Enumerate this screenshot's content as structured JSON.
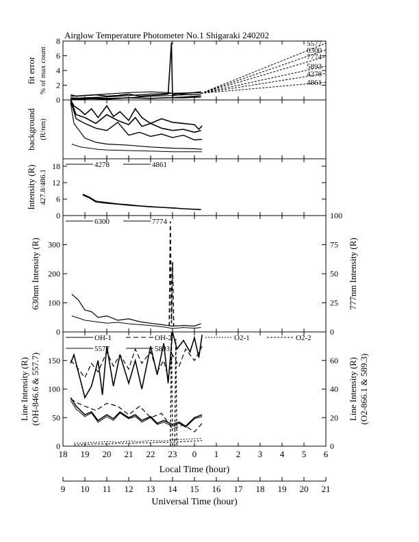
{
  "title": "Airglow Temperature Photometer No.1  Shigaraki  240202",
  "chart_data": [
    {
      "id": "fit-error",
      "type": "line",
      "ylabel_lines": [
        "fit error",
        "% of max count"
      ],
      "ylim": [
        0,
        8
      ],
      "yticks": [
        "0",
        "2",
        "4",
        "6",
        "8"
      ],
      "right_labels": [
        "5577",
        "6300",
        "7774",
        "5893",
        "4278",
        "4861"
      ],
      "series": [
        {
          "name": "5577",
          "width": 1.6,
          "x": [
            18.35,
            18.6,
            19.0,
            19.5,
            20.0,
            20.5,
            21.0,
            21.5,
            22.0,
            22.5,
            22.8,
            22.95,
            23.0,
            23.05,
            23.2,
            23.6,
            24.0,
            24.3
          ],
          "y": [
            0.7,
            0.5,
            0.6,
            0.7,
            0.5,
            0.6,
            0.8,
            0.5,
            0.6,
            0.7,
            0.8,
            7.8,
            0.4,
            0.7,
            0.8,
            0.9,
            1.0,
            1.1
          ]
        },
        {
          "name": "6300",
          "width": 1.2,
          "x": [
            18.35,
            19.0,
            19.5,
            20.0,
            21.0,
            22.0,
            22.8,
            23.5,
            24.0,
            24.3
          ],
          "y": [
            0.3,
            0.2,
            0.3,
            0.2,
            0.3,
            0.2,
            0.3,
            0.4,
            0.5,
            0.6
          ]
        },
        {
          "name": "7774",
          "width": 1.2,
          "x": [
            18.35,
            19.0,
            20.0,
            21.0,
            22.0,
            22.8,
            23.2,
            23.8,
            24.3
          ],
          "y": [
            0.5,
            0.6,
            0.8,
            1.0,
            1.1,
            1.0,
            0.8,
            0.7,
            0.8
          ]
        },
        {
          "name": "5893",
          "width": 1.6,
          "x": [
            18.35,
            19.0,
            20.0,
            21.0,
            22.0,
            22.8,
            23.5,
            24.3
          ],
          "y": [
            0.1,
            0.2,
            0.1,
            0.3,
            0.2,
            0.3,
            0.3,
            0.4
          ]
        },
        {
          "name": "4278",
          "width": 1.2,
          "x": [
            18.35,
            19.0,
            20.0,
            21.0,
            22.0,
            23.0,
            24.3
          ],
          "y": [
            0.2,
            0.3,
            0.4,
            0.6,
            0.8,
            0.9,
            1.0
          ]
        },
        {
          "name": "4861",
          "width": 1.0,
          "x": [
            18.35,
            19.0,
            20.0,
            21.0,
            22.0,
            23.0,
            24.3
          ],
          "y": [
            0.0,
            0.1,
            0.2,
            0.3,
            0.5,
            0.6,
            0.8
          ]
        }
      ],
      "guide_lines": [
        {
          "name": "5577",
          "x": [
            24.3,
            30.0
          ],
          "y": [
            0.9,
            7.7
          ]
        },
        {
          "name": "6300",
          "x": [
            24.3,
            30.0
          ],
          "y": [
            0.9,
            6.8
          ]
        },
        {
          "name": "7774",
          "x": [
            24.3,
            30.0
          ],
          "y": [
            0.9,
            5.9
          ]
        },
        {
          "name": "5893",
          "x": [
            24.3,
            30.0
          ],
          "y": [
            0.9,
            4.6
          ]
        },
        {
          "name": "4278",
          "x": [
            24.3,
            30.0
          ],
          "y": [
            0.9,
            3.6
          ]
        },
        {
          "name": "4861",
          "x": [
            24.3,
            30.0
          ],
          "y": [
            0.9,
            2.4
          ]
        }
      ]
    },
    {
      "id": "background",
      "type": "line",
      "ylabel_lines": [
        "background",
        "(R/nm)"
      ],
      "ylim": [
        0,
        100
      ],
      "yticks": [],
      "series": [
        {
          "width": 1.6,
          "x": [
            18.35,
            18.5,
            18.8,
            19.0,
            19.3,
            19.6,
            20.0,
            20.3,
            20.6,
            21.0,
            21.3,
            21.6,
            22.0,
            22.5,
            23.0,
            23.5,
            24.0,
            24.2,
            24.35
          ],
          "y": [
            100,
            90,
            82,
            75,
            85,
            70,
            90,
            72,
            80,
            65,
            85,
            70,
            60,
            68,
            62,
            60,
            58,
            50,
            56
          ]
        },
        {
          "width": 1.6,
          "x": [
            18.35,
            18.6,
            19.0,
            19.5,
            20.0,
            20.5,
            21.0,
            21.3,
            21.6,
            22.0,
            22.5,
            23.0,
            23.5,
            24.0,
            24.3
          ],
          "y": [
            100,
            75,
            70,
            60,
            75,
            65,
            58,
            70,
            55,
            60,
            52,
            48,
            50,
            45,
            48
          ]
        },
        {
          "width": 1.4,
          "x": [
            18.35,
            18.6,
            19.0,
            19.5,
            20.0,
            20.5,
            21.0,
            21.5,
            22.0,
            22.5,
            23.0,
            23.5,
            24.0,
            24.35
          ],
          "y": [
            98,
            68,
            60,
            52,
            48,
            62,
            40,
            45,
            38,
            42,
            36,
            40,
            32,
            33
          ]
        },
        {
          "width": 1.2,
          "x": [
            18.35,
            18.5,
            18.8,
            19.0,
            19.5,
            20.0,
            21.0,
            22.0,
            23.0,
            24.0,
            24.35
          ],
          "y": [
            95,
            60,
            45,
            35,
            28,
            25,
            23,
            20,
            18,
            17,
            16
          ]
        },
        {
          "width": 1.0,
          "x": [
            18.4,
            18.8,
            19.2,
            19.6,
            20.0,
            21.0,
            22.0,
            23.0,
            24.0,
            24.35
          ],
          "y": [
            25,
            20,
            18,
            16,
            15,
            14,
            13,
            12,
            12,
            12
          ]
        }
      ]
    },
    {
      "id": "blue-intensity",
      "type": "line",
      "ylabel_lines": [
        "Intensity (R)",
        "427.8/486.1"
      ],
      "ylim": [
        0,
        20.7
      ],
      "yticks": [
        "0",
        "6",
        "12",
        "18"
      ],
      "legend": [
        "4278",
        "4861"
      ],
      "series": [
        {
          "name": "4278",
          "width": 1.6,
          "x": [
            18.9,
            19.2,
            19.5,
            20.0,
            20.5,
            21.0,
            21.5,
            22.0,
            22.5,
            23.0,
            23.5,
            24.0,
            24.3
          ],
          "y": [
            7.5,
            6.5,
            5.0,
            4.5,
            4.2,
            3.8,
            3.5,
            3.2,
            3.0,
            2.8,
            2.5,
            2.3,
            2.2
          ]
        },
        {
          "name": "4861",
          "width": 1.0,
          "x": [
            18.9,
            19.2,
            19.5,
            20.0,
            20.5,
            21.0,
            21.5,
            22.0,
            22.5,
            23.0,
            23.5,
            24.0,
            24.3
          ],
          "y": [
            7.8,
            6.8,
            5.3,
            4.8,
            4.3,
            4.0,
            3.6,
            3.3,
            3.0,
            2.7,
            2.5,
            2.3,
            2.2
          ]
        }
      ]
    },
    {
      "id": "red-intensity",
      "type": "line",
      "ylabel_left": "630nm Intensity (R)",
      "ylabel_right": "777nm Intensity (R)",
      "ylim": [
        0,
        400
      ],
      "yticks": [
        "0",
        "100",
        "200",
        "300"
      ],
      "ylim_right": [
        0,
        100
      ],
      "yticks_right": [
        "0",
        "25",
        "50",
        "75",
        "100"
      ],
      "legend": [
        "6300",
        "7774"
      ],
      "series": [
        {
          "name": "6300",
          "width": 1.2,
          "x": [
            18.4,
            18.7,
            19.0,
            19.3,
            19.6,
            20.0,
            20.5,
            21.0,
            21.5,
            22.0,
            22.5,
            23.0,
            23.5,
            24.0,
            24.3
          ],
          "y": [
            130,
            110,
            75,
            70,
            50,
            55,
            40,
            45,
            35,
            30,
            25,
            20,
            22,
            20,
            28
          ]
        },
        {
          "name": "7774",
          "width": 1.0,
          "x": [
            18.4,
            18.7,
            19.0,
            19.5,
            20.0,
            20.5,
            21.0,
            21.5,
            22.0,
            22.5,
            23.0,
            23.5,
            24.0,
            24.3
          ],
          "y": [
            55,
            48,
            40,
            35,
            30,
            33,
            28,
            25,
            22,
            18,
            12,
            15,
            13,
            15
          ]
        },
        {
          "name": "6300",
          "width": 1.6,
          "dash": "6,4",
          "x": [
            22.85,
            22.9,
            22.95,
            23.0,
            23.05
          ],
          "y": [
            20,
            380,
            30,
            240,
            20
          ]
        }
      ]
    },
    {
      "id": "line-intensity",
      "type": "line",
      "ylabel_left_lines": [
        "Line Intensity (R)",
        "(OH-846.6 & 557.7)"
      ],
      "ylabel_right_lines": [
        "Line Intensity (R)",
        "(O2-866.1 & 589.3)"
      ],
      "ylim": [
        0,
        200
      ],
      "yticks": [
        "0",
        "50",
        "100",
        "150"
      ],
      "ylim_right": [
        0,
        80
      ],
      "yticks_right": [
        "0",
        "20",
        "40",
        "60"
      ],
      "legend": [
        "OH-1",
        "OH-2",
        "O2-1",
        "O2-2",
        "5577",
        "5893"
      ],
      "series": [
        {
          "name": "OH-1",
          "width": 1.6,
          "x": [
            18.35,
            18.5,
            18.7,
            19.0,
            19.3,
            19.6,
            19.8,
            20.0,
            20.3,
            20.6,
            21.0,
            21.3,
            21.6,
            22.0,
            22.3,
            22.6,
            22.8,
            23.0,
            23.2,
            23.5,
            23.8,
            24.0,
            24.2,
            24.35
          ],
          "y": [
            145,
            160,
            130,
            85,
            105,
            150,
            90,
            175,
            105,
            160,
            110,
            150,
            100,
            175,
            125,
            180,
            110,
            200,
            170,
            185,
            165,
            190,
            155,
            195
          ]
        },
        {
          "name": "OH-2",
          "width": 1.2,
          "dash": "7,4",
          "x": [
            18.35,
            18.6,
            19.0,
            19.3,
            19.6,
            20.0,
            20.3,
            20.6,
            21.0,
            21.3,
            21.6,
            22.0,
            22.3,
            22.6,
            22.8,
            23.0,
            23.3,
            23.6,
            24.0,
            24.35
          ],
          "y": [
            150,
            140,
            120,
            145,
            130,
            165,
            140,
            160,
            135,
            170,
            145,
            165,
            130,
            150,
            120,
            160,
            140,
            170,
            150,
            175
          ]
        },
        {
          "name": "5577",
          "width": 1.6,
          "x": [
            18.35,
            18.6,
            19.0,
            19.3,
            19.6,
            20.0,
            20.3,
            20.6,
            21.0,
            21.3,
            21.6,
            22.0,
            22.3,
            22.6,
            23.0,
            23.3,
            23.6,
            24.0,
            24.35
          ],
          "y": [
            85,
            70,
            55,
            60,
            45,
            55,
            48,
            60,
            50,
            55,
            45,
            52,
            40,
            45,
            38,
            42,
            35,
            50,
            55
          ]
        },
        {
          "name": "5893",
          "width": 1.0,
          "x": [
            18.35,
            18.6,
            19.0,
            19.3,
            19.6,
            20.0,
            20.3,
            20.6,
            21.0,
            21.3,
            21.6,
            22.0,
            22.3,
            22.6,
            23.0,
            23.3,
            23.6,
            24.0,
            24.35
          ],
          "y": [
            80,
            65,
            52,
            58,
            42,
            52,
            45,
            58,
            48,
            52,
            42,
            50,
            38,
            42,
            35,
            40,
            33,
            48,
            52
          ]
        },
        {
          "name": "O2-1",
          "width": 1.0,
          "dash": "2,2",
          "x": [
            18.5,
            19.0,
            19.5,
            20.0,
            20.5,
            21.0,
            21.5,
            22.0,
            22.5,
            23.0,
            23.5,
            24.0,
            24.35
          ],
          "y": [
            5,
            6,
            7,
            8,
            7,
            9,
            8,
            10,
            9,
            11,
            12,
            13,
            14
          ]
        },
        {
          "name": "O2-2",
          "width": 1.0,
          "dash": "3,2",
          "x": [
            18.5,
            19.0,
            19.5,
            20.0,
            20.5,
            21.0,
            21.5,
            22.0,
            22.5,
            23.0,
            23.5,
            24.0,
            24.35
          ],
          "y": [
            2,
            3,
            4,
            4,
            5,
            5,
            6,
            6,
            7,
            7,
            8,
            9,
            10
          ]
        }
      ],
      "right_series": [
        {
          "name": "O2-1",
          "width": 1.2,
          "dash": "7,4",
          "x": [
            18.35,
            18.7,
            19.0,
            19.5,
            20.0,
            20.5,
            21.0,
            21.5,
            22.0,
            22.5,
            23.0,
            23.5,
            24.0,
            24.35
          ],
          "y": [
            33,
            30,
            28,
            25,
            30,
            28,
            22,
            28,
            20,
            23,
            12,
            15,
            10,
            16
          ]
        }
      ],
      "spikes": [
        {
          "width": 1.2,
          "dash": "4,3",
          "x": [
            22.9,
            22.95,
            23.0
          ],
          "y": [
            0,
            80,
            0
          ]
        },
        {
          "width": 1.2,
          "dash": "4,3",
          "x": [
            23.1,
            23.15,
            23.2
          ],
          "y": [
            0,
            75,
            0
          ]
        }
      ]
    }
  ],
  "xaxis_local": {
    "label": "Local Time (hour)",
    "range": [
      18,
      30
    ],
    "ticks": [
      "18",
      "19",
      "20",
      "21",
      "22",
      "23",
      "0",
      "1",
      "2",
      "3",
      "4",
      "5",
      "6"
    ]
  },
  "xaxis_ut": {
    "label": "Universal Time (hour)",
    "range": [
      9,
      21
    ],
    "ticks": [
      "9",
      "10",
      "11",
      "12",
      "13",
      "14",
      "15",
      "16",
      "17",
      "18",
      "19",
      "20",
      "21"
    ]
  }
}
